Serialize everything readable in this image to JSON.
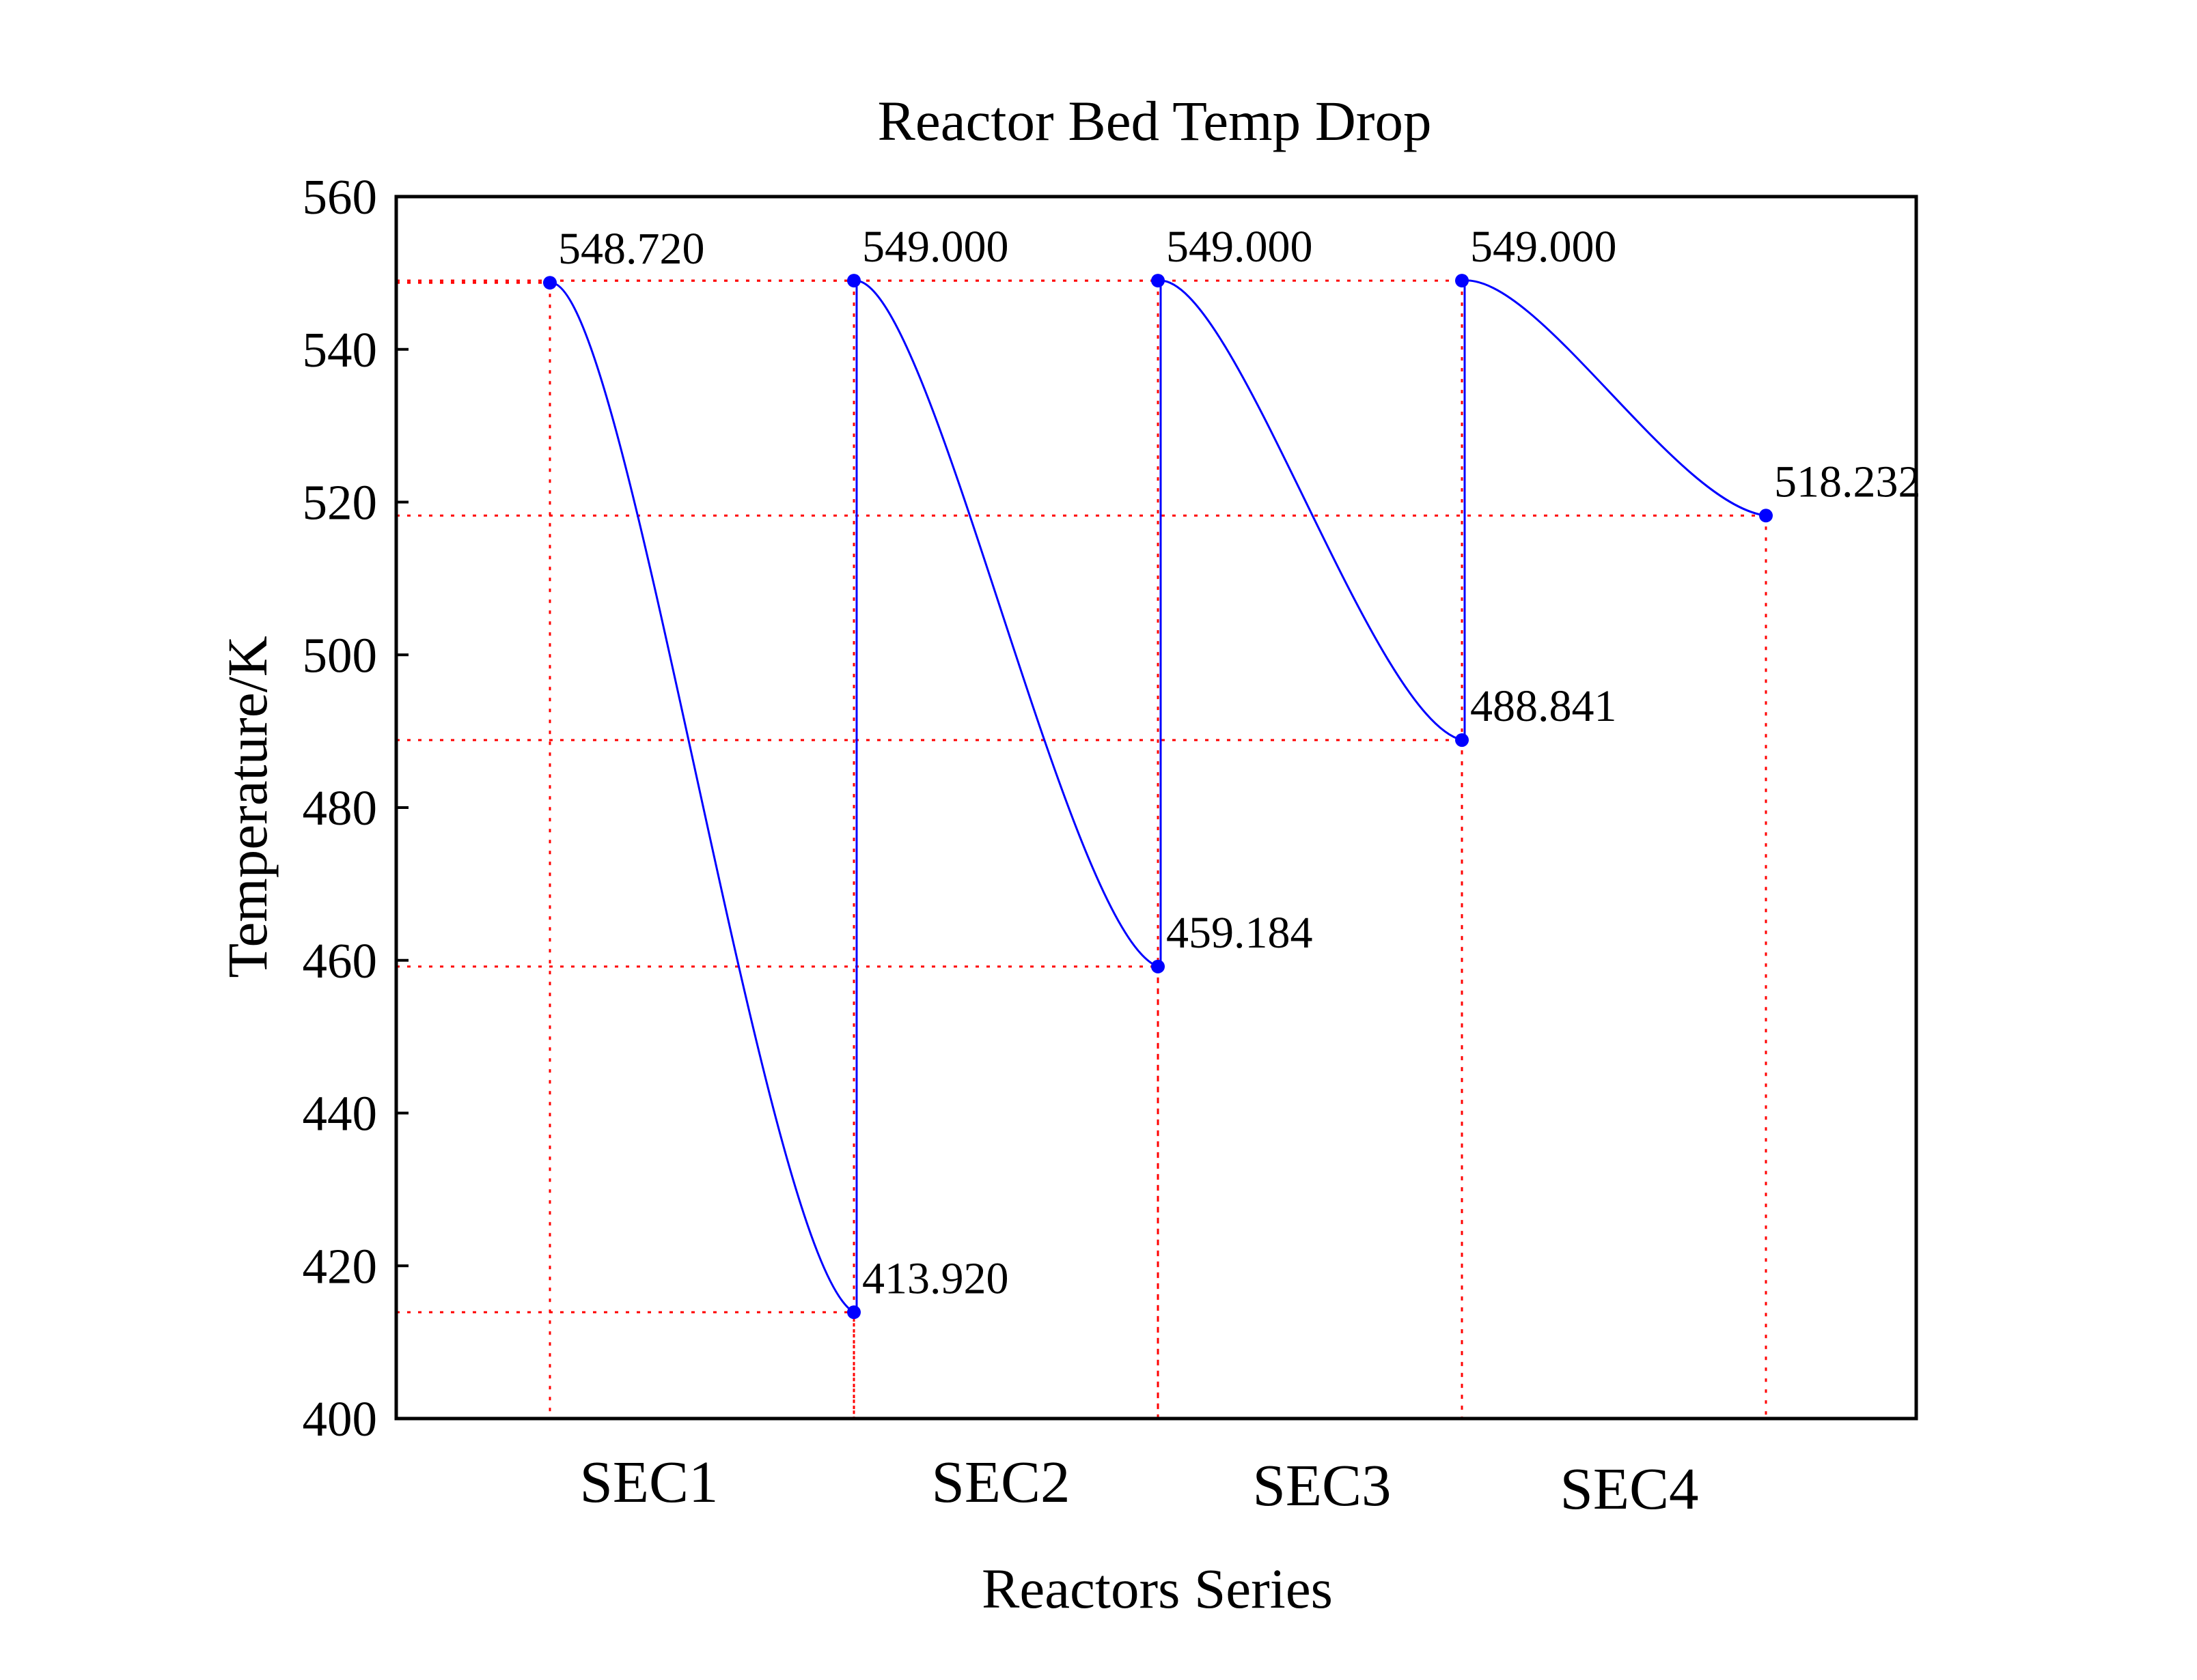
{
  "chart_data": {
    "type": "line",
    "title": "Reactor Bed Temp Drop",
    "xlabel": "Reactors Series",
    "ylabel": "Temperature/K",
    "ylim": [
      400,
      560
    ],
    "yticks": [
      400,
      420,
      440,
      460,
      480,
      500,
      520,
      540,
      560
    ],
    "categories": [
      "SEC1",
      "SEC2",
      "SEC3",
      "SEC4"
    ],
    "grid": "dotted reference lines to each data point",
    "colors": {
      "line": "#0000ff",
      "marker": "#0000ff",
      "reference": "#ff0000",
      "frame": "#000000"
    },
    "segments": [
      {
        "section": "SEC1",
        "inlet": 548.72,
        "outlet": 413.92,
        "inlet_label": "548.720",
        "outlet_label": "413.920"
      },
      {
        "section": "SEC2",
        "inlet": 549.0,
        "outlet": 459.184,
        "inlet_label": "549.000",
        "outlet_label": "459.184"
      },
      {
        "section": "SEC3",
        "inlet": 549.0,
        "outlet": 488.841,
        "inlet_label": "549.000",
        "outlet_label": "488.841"
      },
      {
        "section": "SEC4",
        "inlet": 549.0,
        "outlet": 518.232,
        "inlet_label": "549.000",
        "outlet_label": "518.232"
      }
    ]
  }
}
